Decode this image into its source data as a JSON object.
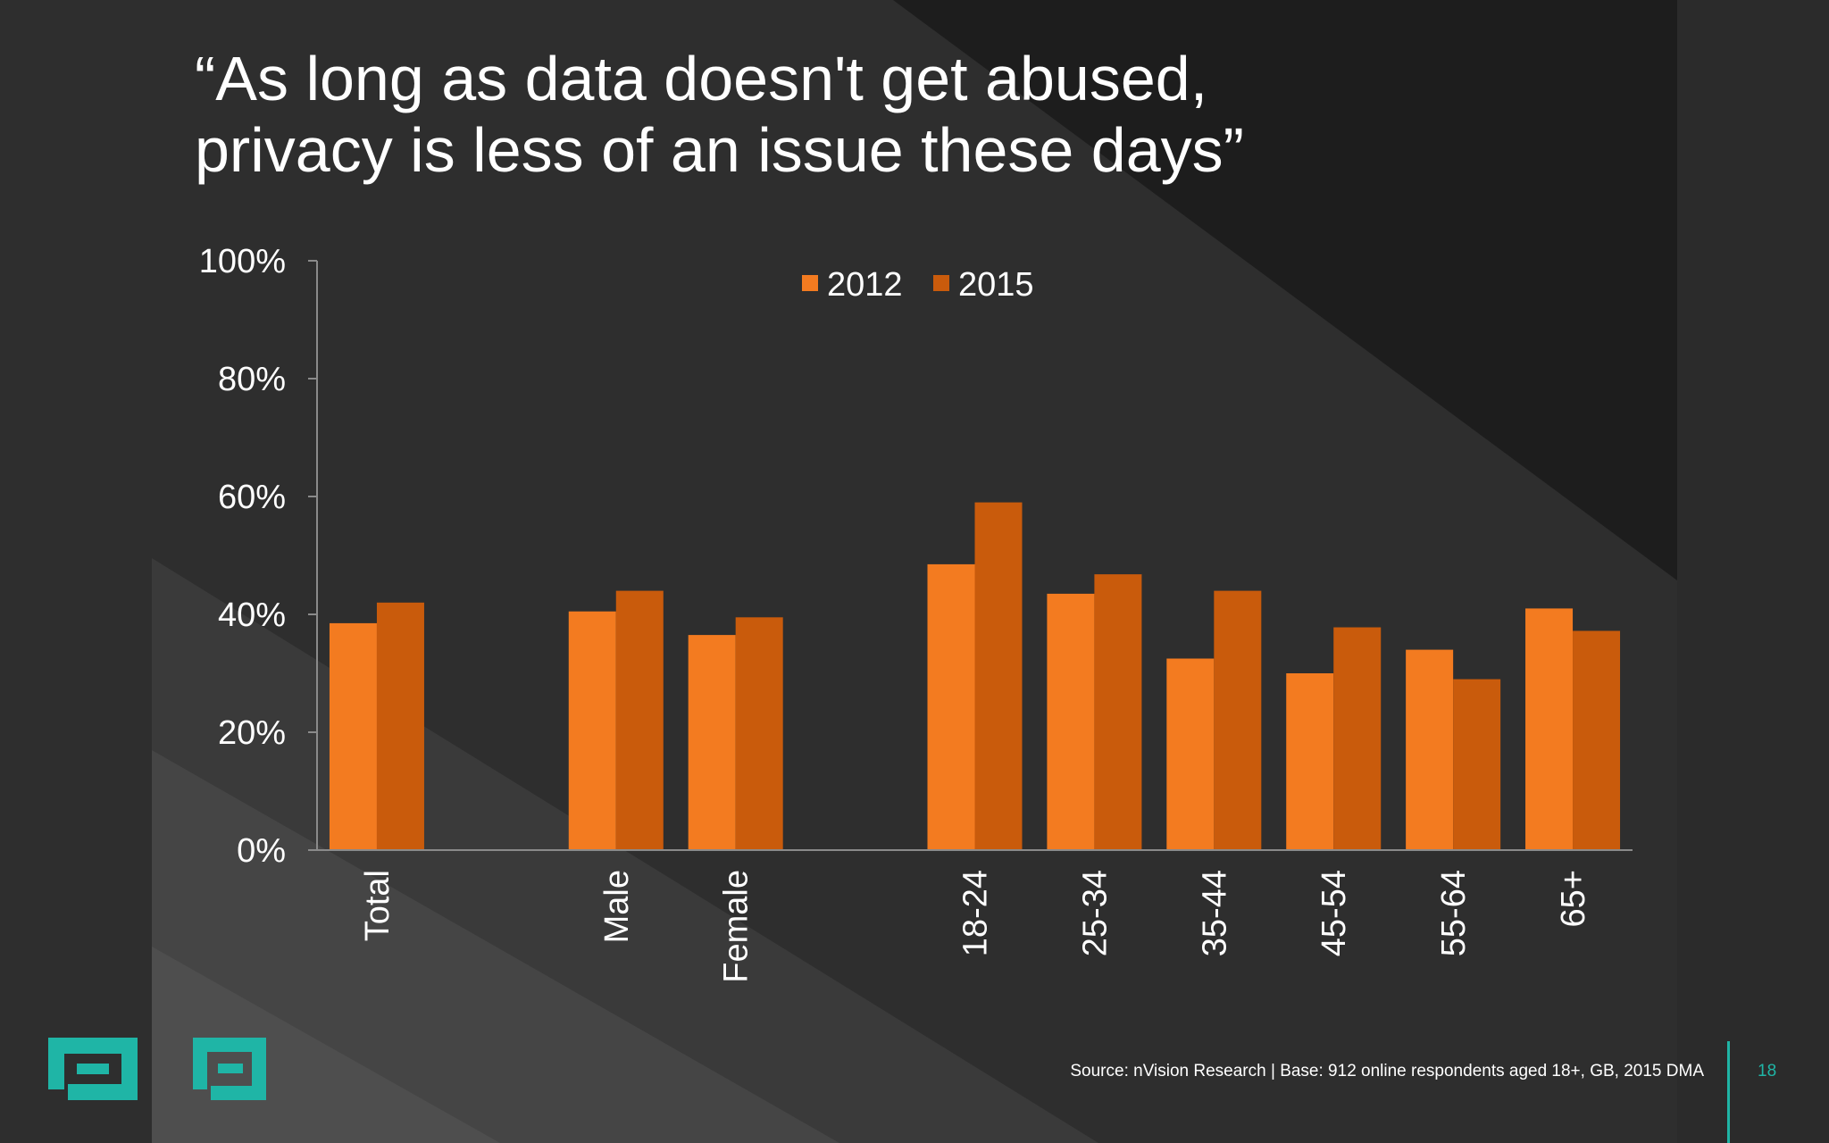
{
  "slide": {
    "title_line1": "“As long as data doesn't get abused,",
    "title_line2": "privacy is less of an issue these days”",
    "source": "Source: nVision Research | Base: 912 online respondents aged 18+, GB, 2015 DMA",
    "page_number": "18"
  },
  "colors": {
    "background": "#2e2e2e",
    "series_2012": "#f37b20",
    "series_2015": "#c95b0c",
    "accent": "#1fb5a6"
  },
  "chart_data": {
    "type": "bar",
    "title": "“As long as data doesn't get abused, privacy is less of an issue these days”",
    "xlabel": "",
    "ylabel": "",
    "ylim": [
      0,
      100
    ],
    "y_ticks": [
      "0%",
      "20%",
      "40%",
      "60%",
      "80%",
      "100%"
    ],
    "legend_position": "top-center",
    "grid": false,
    "categories": [
      "Total",
      "",
      "Male",
      "Female",
      "",
      "18-24",
      "25-34",
      "35-44",
      "45-54",
      "55-64",
      "65+"
    ],
    "series": [
      {
        "name": "2012",
        "values": [
          38.5,
          null,
          40.5,
          36.5,
          null,
          48.5,
          43.5,
          32.5,
          30,
          34,
          41
        ]
      },
      {
        "name": "2015",
        "values": [
          42,
          null,
          44,
          39.5,
          null,
          59,
          46.8,
          44,
          37.8,
          29,
          37.2
        ]
      }
    ]
  }
}
